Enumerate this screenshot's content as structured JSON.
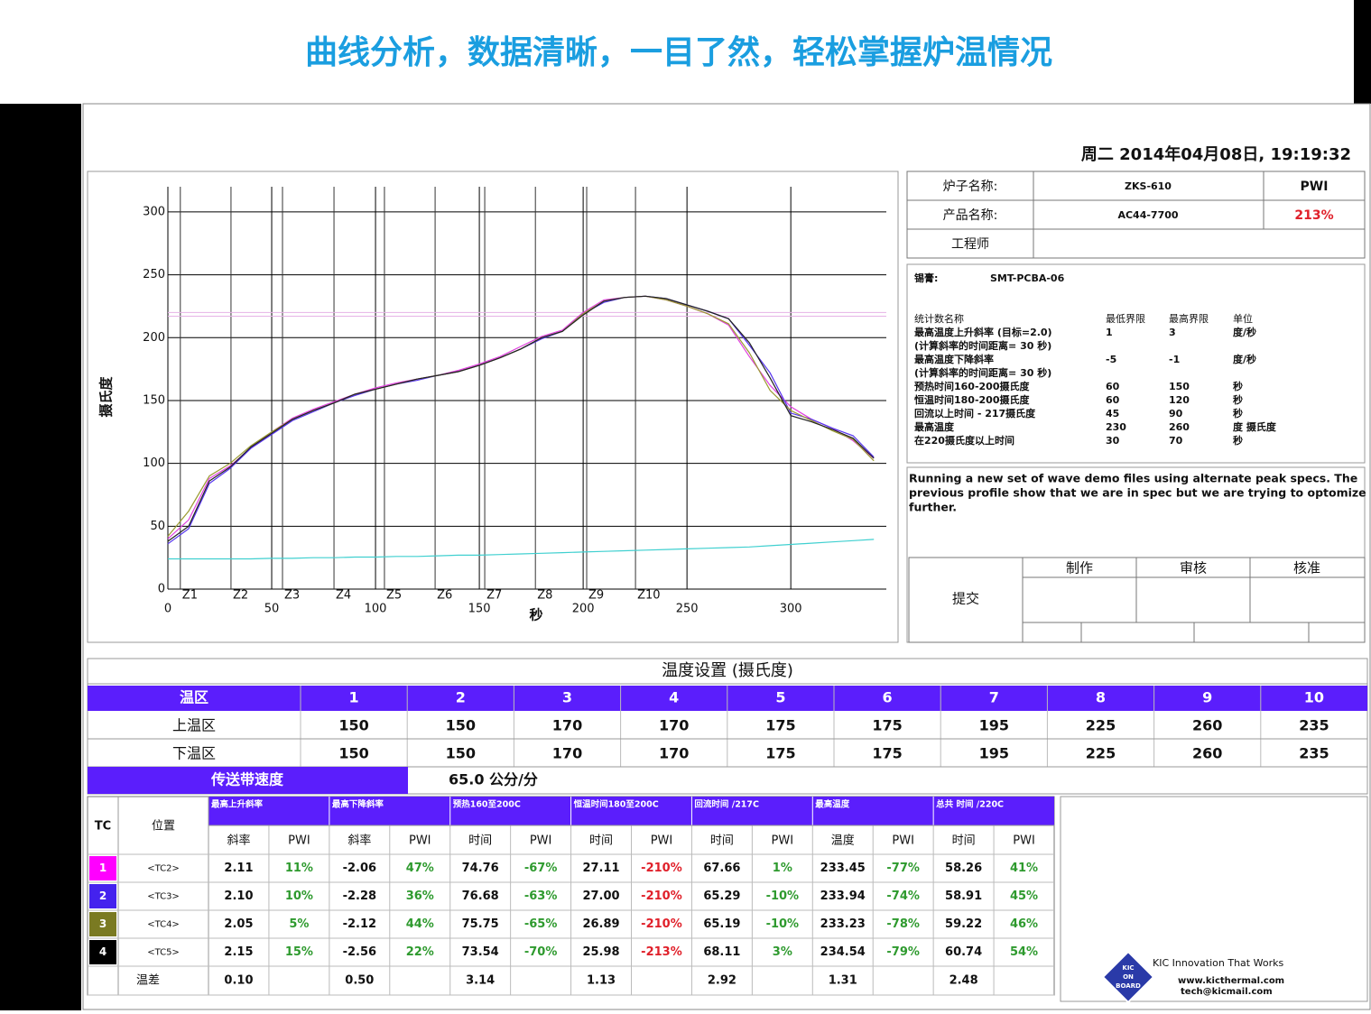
{
  "title": "曲线分析，数据清晰，一目了然，轻松掌握炉温情况",
  "report": {
    "date": "周二 2014年04月08日, 19:19:32"
  },
  "chart_data": {
    "type": "line",
    "xlabel": "秒",
    "ylabel": "摄氏度",
    "x": [
      0,
      10,
      20,
      30,
      40,
      50,
      60,
      70,
      80,
      90,
      100,
      110,
      120,
      130,
      140,
      150,
      160,
      170,
      180,
      190,
      200,
      210,
      220,
      230,
      240,
      250,
      260,
      270,
      280,
      290,
      300,
      310,
      320,
      330,
      340
    ],
    "series": [
      {
        "color": "#e040e0",
        "values": [
          40,
          55,
          88,
          98,
          112,
          125,
          136,
          143,
          149,
          155,
          160,
          164,
          167,
          170,
          174,
          179,
          185,
          193,
          201,
          206,
          220,
          230,
          232,
          233,
          230,
          225,
          219,
          210,
          185,
          162,
          145,
          135,
          128,
          118,
          104
        ]
      },
      {
        "color": "#5533ee",
        "values": [
          36,
          48,
          84,
          96,
          112,
          123,
          134,
          141,
          148,
          154,
          159,
          163,
          166,
          170,
          173,
          178,
          184,
          191,
          199,
          205,
          219,
          228,
          232,
          233,
          231,
          226,
          221,
          215,
          194,
          172,
          140,
          135,
          128,
          122,
          105
        ]
      },
      {
        "color": "#9a9a30",
        "values": [
          42,
          62,
          90,
          100,
          114,
          125,
          135,
          142,
          148,
          155,
          159,
          163,
          167,
          170,
          173,
          178,
          184,
          191,
          200,
          205,
          219,
          229,
          232,
          233,
          230,
          225,
          219,
          211,
          188,
          158,
          142,
          134,
          126,
          119,
          102
        ]
      },
      {
        "color": "#222222",
        "values": [
          38,
          50,
          86,
          97,
          113,
          124,
          135,
          142,
          148,
          155,
          159,
          163,
          167,
          170,
          173,
          178,
          184,
          191,
          200,
          205,
          218,
          229,
          232,
          233,
          231,
          226,
          221,
          215,
          196,
          168,
          138,
          133,
          127,
          120,
          104
        ]
      },
      {
        "color": "#40d0d0",
        "values": [
          24,
          24,
          24,
          24,
          24,
          24.5,
          24.5,
          25,
          25,
          25.5,
          25.5,
          26,
          26,
          26.5,
          27,
          27,
          27.5,
          28,
          28.5,
          29,
          29.5,
          30,
          30.5,
          31,
          31.5,
          32,
          32.5,
          33,
          33.5,
          34.5,
          35.5,
          36.5,
          37.5,
          38.5,
          39.5
        ]
      }
    ],
    "xlim": [
      0,
      346
    ],
    "ylim": [
      0,
      320
    ],
    "xticks": [
      0,
      50,
      100,
      150,
      200,
      250,
      300
    ],
    "yticks": [
      0,
      50,
      100,
      150,
      200,
      250,
      300
    ],
    "grid": true,
    "zones": [
      {
        "label": "Z1",
        "x": 6
      },
      {
        "label": "Z2",
        "x": 30.4
      },
      {
        "label": "Z3",
        "x": 55.2
      },
      {
        "label": "Z4",
        "x": 80
      },
      {
        "label": "Z5",
        "x": 104.3
      },
      {
        "label": "Z6",
        "x": 128.7
      },
      {
        "label": "Z7",
        "x": 152.6
      },
      {
        "label": "Z8",
        "x": 177
      },
      {
        "label": "Z9",
        "x": 201.7
      },
      {
        "label": "Z10",
        "x": 225.2
      }
    ],
    "limit_lines": [
      {
        "value": 220,
        "color": "#e6b3e6"
      },
      {
        "value": 217,
        "color": "#e6b3e6"
      }
    ]
  },
  "info": {
    "rows": [
      [
        "炉子名称:",
        "ZKS-610",
        "PWI"
      ],
      [
        "产品名称:",
        "AC44-7700",
        "213%"
      ],
      [
        "工程师"
      ]
    ],
    "pwi_color": "#e0202a"
  },
  "spec": {
    "paste_label": "锡膏:",
    "paste": "SMT-PCBA-06",
    "header": [
      "统计数名称",
      "最低界限",
      "最高界限",
      "单位"
    ],
    "rows": [
      [
        "最高温度上升斜率 (目标=2.0)",
        "1",
        "3",
        "度/秒"
      ],
      [
        "(计算斜率的时间距离= 30 秒)"
      ],
      [
        "最高温度下降斜率",
        "-5",
        "-1",
        "度/秒"
      ],
      [
        "(计算斜率的时间距离= 30 秒)"
      ],
      [
        "预热时间160-200摄氏度",
        "60",
        "150",
        "秒"
      ],
      [
        "恒温时间180-200摄氏度",
        "60",
        "120",
        "秒"
      ],
      [
        "回流以上时间 - 217摄氏度",
        "45",
        "90",
        "秒"
      ],
      [
        "最高温度",
        "230",
        "260",
        "度 摄氏度"
      ],
      [
        "在220摄氏度以上时间",
        "30",
        "70",
        "秒"
      ]
    ]
  },
  "note": [
    "Running a new set of wave demo files using alternate peak specs. The",
    "previous profile show that we are in spec but we are trying to optomize",
    "further."
  ],
  "approval": {
    "label": "提交",
    "headers": [
      "制作",
      "审核",
      "核准"
    ]
  },
  "zone_settings": {
    "title": "温度设置 (摄氏度)",
    "header": [
      "温区",
      "1",
      "2",
      "3",
      "4",
      "5",
      "6",
      "7",
      "8",
      "9",
      "10"
    ],
    "rows": [
      [
        "上温区",
        "150",
        "150",
        "170",
        "170",
        "175",
        "175",
        "195",
        "225",
        "260",
        "235"
      ],
      [
        "下温区",
        "150",
        "150",
        "170",
        "170",
        "175",
        "175",
        "195",
        "225",
        "260",
        "235"
      ]
    ],
    "conveyor_label": "传送带速度",
    "conveyor": "65.0 公分/分"
  },
  "tc_table": {
    "tc_label": "TC",
    "position_label": "位置",
    "groups": [
      "最高上升斜率",
      "最高下降斜率",
      "预热160至200C",
      "恒温时间180至200C",
      "回流时间 /217C",
      "最高温度",
      "总共 时间 /220C"
    ],
    "subheaders": [
      "斜率",
      "PWI",
      "斜率",
      "PWI",
      "时间",
      "PWI",
      "时间",
      "PWI",
      "时间",
      "PWI",
      "温度",
      "PWI",
      "时间",
      "PWI"
    ],
    "rows": [
      {
        "tc": "1",
        "color": "#ff00ff",
        "position": "<TC2>",
        "cells": [
          "2.11",
          "11%",
          "-2.06",
          "47%",
          "74.76",
          "-67%",
          "27.11",
          "-210%",
          "67.66",
          "1%",
          "233.45",
          "-77%",
          "58.26",
          "41%"
        ]
      },
      {
        "tc": "2",
        "color": "#4422ee",
        "position": "<TC3>",
        "cells": [
          "2.10",
          "10%",
          "-2.28",
          "36%",
          "76.68",
          "-63%",
          "27.00",
          "-210%",
          "65.29",
          "-10%",
          "233.94",
          "-74%",
          "58.91",
          "45%"
        ]
      },
      {
        "tc": "3",
        "color": "#7a7a22",
        "position": "<TC4>",
        "cells": [
          "2.05",
          "5%",
          "-2.12",
          "44%",
          "75.75",
          "-65%",
          "26.89",
          "-210%",
          "65.19",
          "-10%",
          "233.23",
          "-78%",
          "59.22",
          "46%"
        ]
      },
      {
        "tc": "4",
        "color": "#000000",
        "position": "<TC5>",
        "cells": [
          "2.15",
          "15%",
          "-2.56",
          "22%",
          "73.54",
          "-70%",
          "25.98",
          "-213%",
          "68.11",
          "3%",
          "234.54",
          "-79%",
          "60.74",
          "54%"
        ]
      }
    ],
    "diff_row": {
      "label": "温差",
      "cells": [
        "0.10",
        null,
        "0.50",
        null,
        "3.14",
        null,
        "1.13",
        null,
        "2.92",
        null,
        "1.31",
        null,
        "2.48",
        null
      ]
    }
  },
  "logo": {
    "badge": [
      "KIC",
      "ON",
      "BOARD"
    ],
    "tagline": "KIC Innovation That Works",
    "web": "www.kicthermal.com",
    "email": "tech@kicmail.com"
  }
}
